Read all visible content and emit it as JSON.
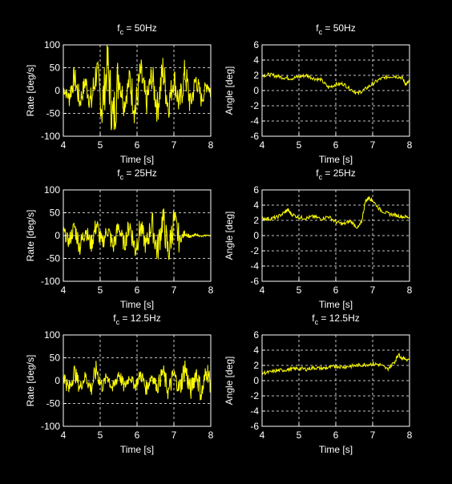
{
  "colors": {
    "background": "#000000",
    "axes": "#ffffff",
    "grid": "#ffffff",
    "trace": "#ffff00"
  },
  "chart_data": [
    {
      "type": "line",
      "title_main": "f",
      "title_sub": "c",
      "title_rest": " = 50Hz",
      "xlabel": "Time [s]",
      "ylabel": "Rate [deg/s]",
      "xlim": [
        4,
        8
      ],
      "ylim": [
        -100,
        100
      ],
      "xticks": [
        4,
        5,
        6,
        7,
        8
      ],
      "yticks": [
        -100,
        -50,
        0,
        50,
        100
      ],
      "grid": true,
      "series": [
        {
          "x": [
            4.0,
            4.15,
            4.3,
            4.45,
            4.6,
            4.75,
            4.9,
            5.05,
            5.2,
            5.35,
            5.5,
            5.65,
            5.8,
            5.95,
            6.1,
            6.25,
            6.4,
            6.55,
            6.7,
            6.85,
            7.0,
            7.15,
            7.3,
            7.45,
            7.6,
            7.75,
            7.9,
            8.0
          ],
          "y": [
            5,
            -15,
            30,
            -25,
            20,
            -30,
            45,
            -40,
            60,
            -70,
            35,
            -30,
            25,
            -45,
            40,
            -30,
            35,
            -40,
            45,
            -35,
            30,
            -35,
            40,
            -30,
            25,
            -20,
            15,
            -5
          ]
        }
      ]
    },
    {
      "type": "line",
      "title_main": "f",
      "title_sub": "c",
      "title_rest": " = 50Hz",
      "xlabel": "Time [s]",
      "ylabel": "Angle [deg]",
      "xlim": [
        4,
        8
      ],
      "ylim": [
        -6,
        6
      ],
      "xticks": [
        4,
        5,
        6,
        7,
        8
      ],
      "yticks": [
        -6,
        -4,
        -2,
        0,
        2,
        4,
        6
      ],
      "grid": true,
      "series": [
        {
          "x": [
            4.0,
            4.2,
            4.4,
            4.6,
            4.8,
            5.0,
            5.2,
            5.4,
            5.6,
            5.8,
            6.0,
            6.2,
            6.4,
            6.6,
            6.8,
            7.0,
            7.2,
            7.4,
            7.6,
            7.8,
            7.9,
            8.0
          ],
          "y": [
            2.0,
            2.1,
            1.9,
            1.7,
            1.6,
            1.8,
            2.0,
            1.6,
            1.4,
            0.4,
            0.8,
            0.9,
            0.2,
            -0.4,
            0.2,
            0.9,
            1.5,
            1.8,
            1.9,
            1.7,
            0.8,
            1.2
          ]
        }
      ]
    },
    {
      "type": "line",
      "title_main": "f",
      "title_sub": "c",
      "title_rest": " = 25Hz",
      "xlabel": "Time [s]",
      "ylabel": "Rate [deg/s]",
      "xlim": [
        4,
        8
      ],
      "ylim": [
        -100,
        100
      ],
      "xticks": [
        4,
        5,
        6,
        7,
        8
      ],
      "yticks": [
        -100,
        -50,
        0,
        50,
        100
      ],
      "grid": true,
      "series": [
        {
          "x": [
            4.0,
            4.15,
            4.3,
            4.45,
            4.6,
            4.75,
            4.9,
            5.05,
            5.2,
            5.35,
            5.5,
            5.65,
            5.8,
            5.95,
            6.1,
            6.25,
            6.4,
            6.55,
            6.7,
            6.85,
            7.0,
            7.15,
            7.3,
            7.45,
            7.6,
            7.75,
            7.9,
            8.0
          ],
          "y": [
            10,
            -15,
            20,
            -25,
            15,
            -20,
            25,
            -20,
            15,
            -25,
            20,
            -20,
            25,
            -30,
            20,
            -25,
            30,
            -35,
            40,
            -40,
            35,
            -10,
            5,
            -3,
            2,
            -2,
            1,
            0
          ]
        }
      ]
    },
    {
      "type": "line",
      "title_main": "f",
      "title_sub": "c",
      "title_rest": " = 25Hz",
      "xlabel": "Time [s]",
      "ylabel": "Angle [deg]",
      "xlim": [
        4,
        8
      ],
      "ylim": [
        -6,
        6
      ],
      "xticks": [
        4,
        5,
        6,
        7,
        8
      ],
      "yticks": [
        -6,
        -4,
        -2,
        0,
        2,
        4,
        6
      ],
      "grid": true,
      "series": [
        {
          "x": [
            4.0,
            4.2,
            4.4,
            4.6,
            4.7,
            4.8,
            5.0,
            5.2,
            5.4,
            5.6,
            5.8,
            6.0,
            6.2,
            6.4,
            6.6,
            6.7,
            6.8,
            6.9,
            7.0,
            7.2,
            7.4,
            7.6,
            7.8,
            8.0
          ],
          "y": [
            2.3,
            2.2,
            2.4,
            3.0,
            3.4,
            2.8,
            2.4,
            2.3,
            2.5,
            2.2,
            2.5,
            1.8,
            1.5,
            1.9,
            1.0,
            1.8,
            4.5,
            5.0,
            4.6,
            3.4,
            2.9,
            2.7,
            2.5,
            2.4
          ]
        }
      ]
    },
    {
      "type": "line",
      "title_main": "f",
      "title_sub": "c",
      "title_rest": " = 12.5Hz",
      "xlabel": "Time [s]",
      "ylabel": "Rate [deg/s]",
      "xlim": [
        4,
        8
      ],
      "ylim": [
        -100,
        100
      ],
      "xticks": [
        4,
        5,
        6,
        7,
        8
      ],
      "yticks": [
        -100,
        -50,
        0,
        50,
        100
      ],
      "grid": true,
      "series": [
        {
          "x": [
            4.0,
            4.15,
            4.3,
            4.45,
            4.6,
            4.75,
            4.9,
            5.05,
            5.2,
            5.35,
            5.5,
            5.65,
            5.8,
            5.95,
            6.1,
            6.25,
            6.4,
            6.55,
            6.7,
            6.85,
            7.0,
            7.15,
            7.3,
            7.45,
            7.6,
            7.75,
            7.9,
            8.0
          ],
          "y": [
            15,
            -20,
            20,
            -15,
            10,
            -18,
            25,
            -15,
            12,
            -20,
            18,
            -15,
            10,
            -12,
            15,
            -18,
            12,
            -15,
            20,
            -25,
            15,
            -20,
            30,
            -25,
            20,
            -30,
            25,
            -10
          ]
        }
      ]
    },
    {
      "type": "line",
      "title_main": "f",
      "title_sub": "c",
      "title_rest": " = 12.5Hz",
      "xlabel": "Time [s]",
      "ylabel": "Angle [deg]",
      "xlim": [
        4,
        8
      ],
      "ylim": [
        -6,
        6
      ],
      "xticks": [
        4,
        5,
        6,
        7,
        8
      ],
      "yticks": [
        -6,
        -4,
        -2,
        0,
        2,
        4,
        6
      ],
      "grid": true,
      "series": [
        {
          "x": [
            4.0,
            4.2,
            4.4,
            4.6,
            4.8,
            5.0,
            5.2,
            5.4,
            5.6,
            5.8,
            6.0,
            6.2,
            6.4,
            6.6,
            6.8,
            7.0,
            7.2,
            7.4,
            7.6,
            7.7,
            7.8,
            8.0
          ],
          "y": [
            1.0,
            1.1,
            1.3,
            1.4,
            1.5,
            1.6,
            1.5,
            1.7,
            1.6,
            1.7,
            1.9,
            1.8,
            1.9,
            2.0,
            2.1,
            2.2,
            2.1,
            1.5,
            2.5,
            3.5,
            2.9,
            2.8
          ]
        }
      ]
    }
  ]
}
